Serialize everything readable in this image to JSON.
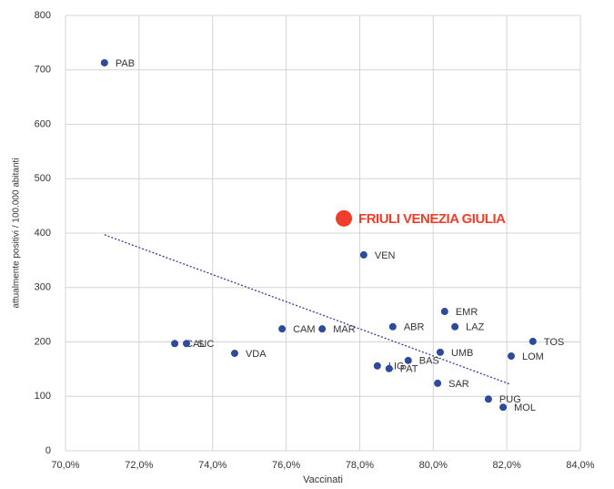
{
  "chart_data": {
    "type": "scatter",
    "x_label": "Vaccinati",
    "y_label": "attualmente positivi / 100.000 abitanti",
    "xlim": [
      70,
      84
    ],
    "xticks": [
      {
        "value": 70,
        "label": "70,0%"
      },
      {
        "value": 72,
        "label": "72,0%"
      },
      {
        "value": 74,
        "label": "74,0%"
      },
      {
        "value": 76,
        "label": "76,0%"
      },
      {
        "value": 78,
        "label": "78,0%"
      },
      {
        "value": 80,
        "label": "80,0%"
      },
      {
        "value": 82,
        "label": "82,0%"
      },
      {
        "value": 84,
        "label": "84,0%"
      }
    ],
    "ylim": [
      0,
      800
    ],
    "yticks": [
      0,
      100,
      200,
      300,
      400,
      500,
      600,
      700,
      800
    ],
    "grid": true,
    "color": "#2e4b9b",
    "points": [
      {
        "label": "PAB",
        "x": 71.06,
        "y": 713
      },
      {
        "label": "VEN",
        "x": 78.11,
        "y": 360
      },
      {
        "label": "EMR",
        "x": 80.31,
        "y": 256
      },
      {
        "label": "ABR",
        "x": 78.9,
        "y": 228
      },
      {
        "label": "LAZ",
        "x": 80.59,
        "y": 228
      },
      {
        "label": "CAM",
        "x": 75.89,
        "y": 224
      },
      {
        "label": "MAR",
        "x": 76.98,
        "y": 224
      },
      {
        "label": "TOS",
        "x": 82.71,
        "y": 201
      },
      {
        "label": "CAL",
        "x": 72.97,
        "y": 197
      },
      {
        "label": "SIC",
        "x": 73.29,
        "y": 197
      },
      {
        "label": "VDA",
        "x": 74.6,
        "y": 179
      },
      {
        "label": "UMB",
        "x": 80.19,
        "y": 181
      },
      {
        "label": "LOM",
        "x": 82.12,
        "y": 174
      },
      {
        "label": "BAS",
        "x": 79.32,
        "y": 166
      },
      {
        "label": "LIG",
        "x": 78.48,
        "y": 156
      },
      {
        "label": "PAT",
        "x": 78.8,
        "y": 151
      },
      {
        "label": "SAR",
        "x": 80.12,
        "y": 124
      },
      {
        "label": "PUG",
        "x": 81.5,
        "y": 95
      },
      {
        "label": "MOL",
        "x": 81.9,
        "y": 80
      }
    ],
    "highlight": {
      "label": "FRIULI VENEZIA GIULIA",
      "x": 77.57,
      "y": 427,
      "color": "#ef3e2c"
    },
    "trendline": {
      "x": [
        71.06,
        82.1
      ],
      "y": [
        397,
        122
      ],
      "color": "#2e3f9b"
    }
  }
}
